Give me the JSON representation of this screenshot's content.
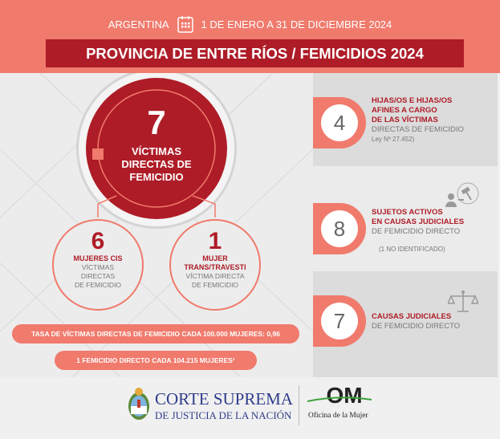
{
  "header": {
    "country": "ARGENTINA",
    "period": "1 DE ENERO A 31 DE DICIEMBRE 2024",
    "title": "PROVINCIA DE ENTRE RÍOS / FEMICIDIOS 2024",
    "calendar_icon": "calendar-icon"
  },
  "main": {
    "total": "7",
    "total_label": "VÍCTIMAS DIRECTAS DE FEMICIDIO",
    "cis": {
      "value": "6",
      "label": "MUJERES CIS",
      "desc1": "VÍCTIMAS",
      "desc2": "DIRECTAS",
      "desc3": "DE FEMICIDIO"
    },
    "trans": {
      "value": "1",
      "label1": "MUJER",
      "label2": "TRANS/TRAVESTI",
      "desc1": "VÍCTIMA DIRECTA",
      "desc2": "DE FEMICIDIO"
    },
    "rate": "TASA DE VÍCTIMAS DIRECTAS DE FEMICIDIO CADA 100.000 MUJERES: 0,96",
    "ratio": "1 FEMICIDIO DIRECTO CADA 104.215 MUJERES¹"
  },
  "side": [
    {
      "value": "4",
      "l1": "HIJAS/OS E HIJAS/OS",
      "l2": "AFINES A CARGO",
      "l3": "DE LAS VÍCTIMAS",
      "d1": "DIRECTAS DE FEMICIDIO",
      "d2": "Ley Nº 27.452)"
    },
    {
      "value": "8",
      "l1": "SUJETOS ACTIVOS",
      "l2": "EN CAUSAS JUDICIALES",
      "d1": "DE FEMICIDIO DIRECTO",
      "d2": "(1 NO IDENTIFICADO)",
      "icon": "judge-gavel-icon"
    },
    {
      "value": "7",
      "l1": "CAUSAS JUDICIALES",
      "d1": "DE FEMICIDIO DIRECTO",
      "icon": "scales-icon"
    }
  ],
  "footer": {
    "org1": "CORTE SUPREMA",
    "org2": "DE JUSTICIA DE LA NACIÓN",
    "om": "OM",
    "om_name": "Oficina de la Mujer"
  },
  "colors": {
    "salmon": "#f07a6c",
    "red": "#ae1c27",
    "gray": "#dcdcdc"
  }
}
